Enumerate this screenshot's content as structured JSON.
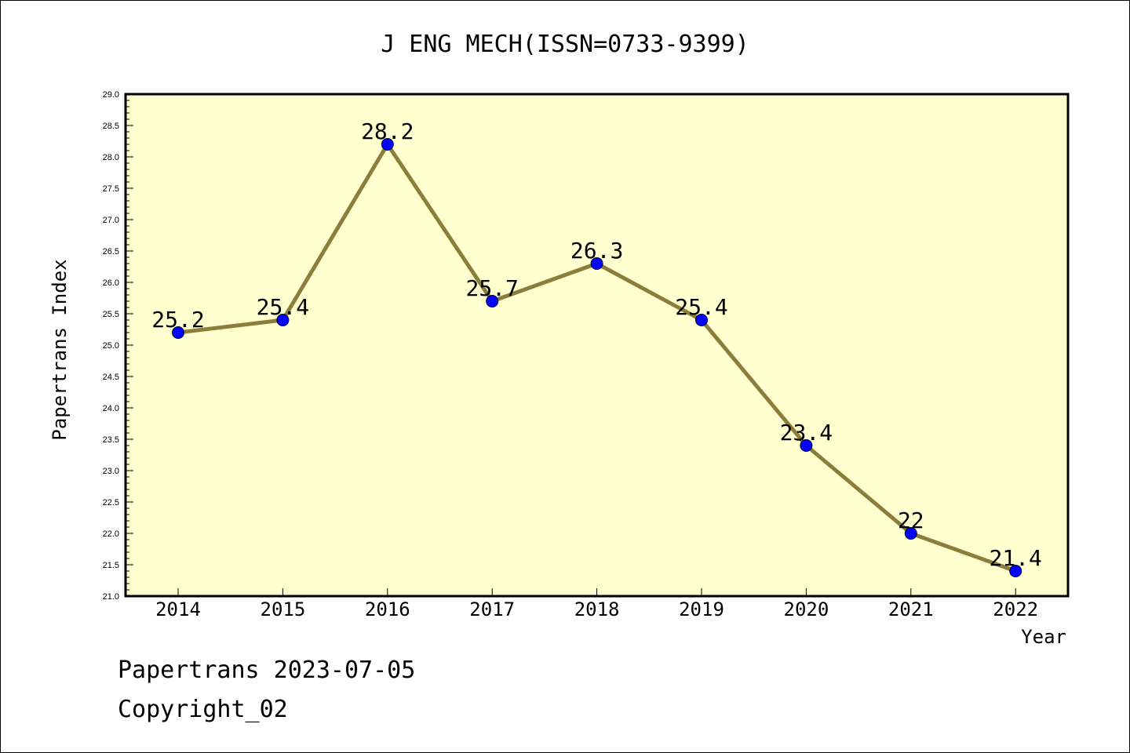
{
  "chart_data": {
    "type": "line",
    "title": "J ENG MECH(ISSN=0733-9399)",
    "xlabel": "Year",
    "ylabel": "Papertrans Index",
    "categories": [
      "2014",
      "2015",
      "2016",
      "2017",
      "2018",
      "2019",
      "2020",
      "2021",
      "2022"
    ],
    "series": [
      {
        "values": [
          25.2,
          25.4,
          28.2,
          25.7,
          26.3,
          25.4,
          23.4,
          22.0,
          21.4
        ]
      }
    ],
    "data_labels": [
      "25.2",
      "25.4",
      "28.2",
      "25.7",
      "26.3",
      "25.4",
      "23.4",
      "22",
      "21.4"
    ],
    "ylim": [
      21.0,
      29.0
    ],
    "ytick_labels": [
      "21.0",
      "21.5",
      "22.0",
      "22.5",
      "23.0",
      "23.5",
      "24.0",
      "24.5",
      "25.0",
      "25.5",
      "26.0",
      "26.5",
      "27.0",
      "27.5",
      "28.0",
      "28.5",
      "29.0"
    ],
    "grid": false,
    "colors": {
      "plot_background": "#ffffd0",
      "line": "#8b7d3a",
      "marker": "#0000ff"
    }
  },
  "footer": {
    "line1": "Papertrans 2023-07-05",
    "line2": "Copyright_02"
  }
}
